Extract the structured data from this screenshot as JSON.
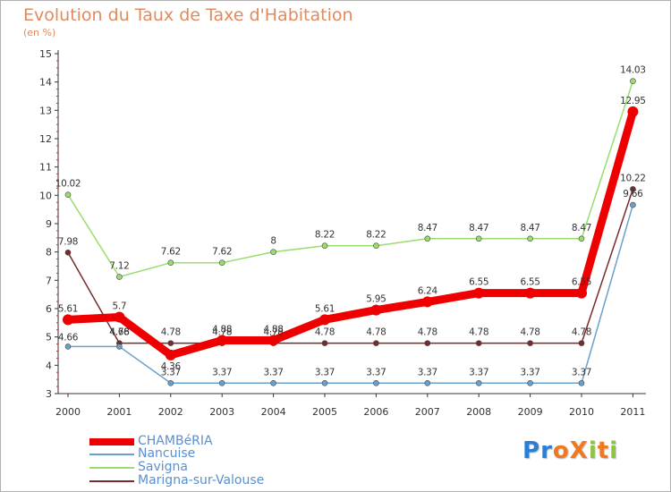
{
  "chart_data": {
    "type": "line",
    "title": "Evolution du Taux de Taxe d'Habitation",
    "subtitle": "(en %)",
    "x": [
      "2000",
      "2001",
      "2002",
      "2003",
      "2004",
      "2005",
      "2006",
      "2007",
      "2008",
      "2009",
      "2010",
      "2011"
    ],
    "y_ticks": [
      "3",
      "4",
      "5",
      "6",
      "7",
      "8",
      "9",
      "10",
      "11",
      "12",
      "13",
      "14",
      "15"
    ],
    "ylim": [
      3,
      15
    ],
    "grid": false,
    "legend_position": "bottom-left",
    "series": [
      {
        "name": "CHAMBéRIA",
        "color": "#ee0000",
        "width": 9,
        "marker": 6,
        "values": [
          5.61,
          5.7,
          4.36,
          4.88,
          4.88,
          5.61,
          5.95,
          6.24,
          6.55,
          6.55,
          6.55,
          12.95
        ],
        "labels": [
          "5.61",
          "5.7",
          "4.36",
          "4.88",
          "4.88",
          "5.61",
          "5.95",
          "6.24",
          "6.55",
          "6.55",
          "6.55",
          "12.95"
        ]
      },
      {
        "name": "Nancuise",
        "color": "#6aa0cc",
        "width": 1.5,
        "marker": 3,
        "values": [
          4.66,
          4.66,
          3.37,
          3.37,
          3.37,
          3.37,
          3.37,
          3.37,
          3.37,
          3.37,
          3.37,
          9.66
        ],
        "labels": [
          "4.66",
          "4.66",
          "3.37",
          "3.37",
          "3.37",
          "3.37",
          "3.37",
          "3.37",
          "3.37",
          "3.37",
          "3.37",
          "9.66"
        ]
      },
      {
        "name": "Savigna",
        "color": "#9adc6e",
        "width": 1.5,
        "marker": 3,
        "values": [
          10.02,
          7.12,
          7.62,
          7.62,
          8,
          8.22,
          8.22,
          8.47,
          8.47,
          8.47,
          8.47,
          14.03
        ],
        "labels": [
          "10.02",
          "7.12",
          "7.62",
          "7.62",
          "8",
          "8.22",
          "8.22",
          "8.47",
          "8.47",
          "8.47",
          "8.47",
          "14.03"
        ]
      },
      {
        "name": "Marigna-sur-Valouse",
        "color": "#7a2a2a",
        "width": 1.5,
        "marker": 3,
        "values": [
          7.98,
          4.78,
          4.78,
          4.78,
          4.78,
          4.78,
          4.78,
          4.78,
          4.78,
          4.78,
          4.78,
          10.22
        ],
        "labels": [
          "7.98",
          "4.78",
          "4.78",
          "4.78",
          "4.78",
          "4.78",
          "4.78",
          "4.78",
          "4.78",
          "4.78",
          "4.78",
          "10.22"
        ]
      }
    ]
  },
  "legend": {
    "items": [
      "CHAMBéRIA",
      "Nancuise",
      "Savigna",
      "Marigna-sur-Valouse"
    ]
  },
  "logo": {
    "text": "ProXiti",
    "letters": [
      "P",
      "r",
      "o",
      "X",
      "i",
      "t",
      "i"
    ],
    "colors": [
      "#2a7fd4",
      "#2a7fd4",
      "#f07820",
      "#f07820",
      "#8cc63e",
      "#f07820",
      "#8cc63e"
    ]
  }
}
